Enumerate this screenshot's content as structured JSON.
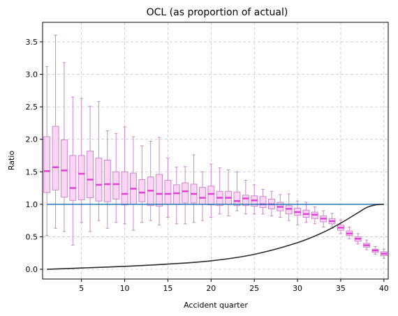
{
  "chart_data": {
    "type": "box",
    "title": "OCL (as proportion of actual)",
    "xlabel": "Accident quarter",
    "ylabel": "Ratio",
    "xlim": [
      0.5,
      40.5
    ],
    "ylim": [
      -0.15,
      3.8
    ],
    "xticks": [
      5,
      10,
      15,
      20,
      25,
      30,
      35,
      40
    ],
    "yticks": [
      0.0,
      0.5,
      1.0,
      1.5,
      2.0,
      2.5,
      3.0,
      3.5
    ],
    "grid": true,
    "colors": {
      "box_fill": "#fcd4f4",
      "box_edge": "#cc88cc",
      "median": "#e040d8",
      "reference_line": "#1f77b4",
      "curve": "#2b2b2b",
      "grid": "#c8c8c8"
    },
    "reference_line": {
      "y": 1.0
    },
    "curve": {
      "x": [
        1,
        5,
        10,
        15,
        20,
        25,
        30,
        33,
        35,
        37,
        38,
        39,
        40
      ],
      "y": [
        0.0,
        0.02,
        0.045,
        0.08,
        0.13,
        0.23,
        0.41,
        0.57,
        0.71,
        0.87,
        0.95,
        0.99,
        1.0
      ]
    },
    "boxes": [
      {
        "x": 1,
        "min": 0.52,
        "q1": 1.18,
        "median": 1.51,
        "q3": 2.04,
        "max": 3.12
      },
      {
        "x": 2,
        "min": 0.63,
        "q1": 1.22,
        "median": 1.57,
        "q3": 2.2,
        "max": 3.6
      },
      {
        "x": 3,
        "min": 0.58,
        "q1": 1.11,
        "median": 1.52,
        "q3": 1.99,
        "max": 3.18
      },
      {
        "x": 4,
        "min": 0.37,
        "q1": 1.06,
        "median": 1.25,
        "q3": 1.75,
        "max": 2.65
      },
      {
        "x": 5,
        "min": 0.72,
        "q1": 1.07,
        "median": 1.47,
        "q3": 1.75,
        "max": 2.63
      },
      {
        "x": 6,
        "min": 0.58,
        "q1": 1.1,
        "median": 1.38,
        "q3": 1.82,
        "max": 2.51
      },
      {
        "x": 7,
        "min": 0.75,
        "q1": 1.05,
        "median": 1.3,
        "q3": 1.71,
        "max": 2.58
      },
      {
        "x": 8,
        "min": 0.63,
        "q1": 1.04,
        "median": 1.31,
        "q3": 1.68,
        "max": 2.13
      },
      {
        "x": 9,
        "min": 0.72,
        "q1": 1.08,
        "median": 1.31,
        "q3": 1.5,
        "max": 2.09
      },
      {
        "x": 10,
        "min": 0.7,
        "q1": 0.99,
        "median": 1.16,
        "q3": 1.5,
        "max": 2.19
      },
      {
        "x": 11,
        "min": 0.6,
        "q1": 1.0,
        "median": 1.24,
        "q3": 1.48,
        "max": 2.04
      },
      {
        "x": 12,
        "min": 0.72,
        "q1": 1.04,
        "median": 1.18,
        "q3": 1.38,
        "max": 1.9
      },
      {
        "x": 13,
        "min": 0.75,
        "q1": 0.98,
        "median": 1.21,
        "q3": 1.42,
        "max": 1.97
      },
      {
        "x": 14,
        "min": 0.68,
        "q1": 0.97,
        "median": 1.16,
        "q3": 1.46,
        "max": 2.03
      },
      {
        "x": 15,
        "min": 0.8,
        "q1": 1.0,
        "median": 1.16,
        "q3": 1.37,
        "max": 1.71
      },
      {
        "x": 16,
        "min": 0.7,
        "q1": 1.0,
        "median": 1.17,
        "q3": 1.3,
        "max": 1.57
      },
      {
        "x": 17,
        "min": 0.7,
        "q1": 1.02,
        "median": 1.2,
        "q3": 1.33,
        "max": 1.58
      },
      {
        "x": 18,
        "min": 0.72,
        "q1": 1.02,
        "median": 1.16,
        "q3": 1.31,
        "max": 1.76
      },
      {
        "x": 19,
        "min": 0.75,
        "q1": 1.0,
        "median": 1.1,
        "q3": 1.26,
        "max": 1.5
      },
      {
        "x": 20,
        "min": 0.8,
        "q1": 0.99,
        "median": 1.16,
        "q3": 1.28,
        "max": 1.62
      },
      {
        "x": 21,
        "min": 0.85,
        "q1": 0.98,
        "median": 1.1,
        "q3": 1.2,
        "max": 1.56
      },
      {
        "x": 22,
        "min": 0.82,
        "q1": 1.0,
        "median": 1.1,
        "q3": 1.2,
        "max": 1.53
      },
      {
        "x": 23,
        "min": 0.9,
        "q1": 0.98,
        "median": 1.05,
        "q3": 1.19,
        "max": 1.5
      },
      {
        "x": 24,
        "min": 0.85,
        "q1": 0.98,
        "median": 1.09,
        "q3": 1.14,
        "max": 1.37
      },
      {
        "x": 25,
        "min": 0.85,
        "q1": 0.97,
        "median": 1.06,
        "q3": 1.13,
        "max": 1.3
      },
      {
        "x": 26,
        "min": 0.85,
        "q1": 0.95,
        "median": 1.0,
        "q3": 1.12,
        "max": 1.23
      },
      {
        "x": 27,
        "min": 0.82,
        "q1": 0.93,
        "median": 1.0,
        "q3": 1.08,
        "max": 1.2
      },
      {
        "x": 28,
        "min": 0.8,
        "q1": 0.9,
        "median": 0.96,
        "q3": 1.03,
        "max": 1.15
      },
      {
        "x": 29,
        "min": 0.75,
        "q1": 0.85,
        "median": 0.93,
        "q3": 0.98,
        "max": 1.16
      },
      {
        "x": 30,
        "min": 0.68,
        "q1": 0.83,
        "median": 0.88,
        "q3": 0.94,
        "max": 1.05
      },
      {
        "x": 31,
        "min": 0.72,
        "q1": 0.8,
        "median": 0.85,
        "q3": 0.91,
        "max": 1.03
      },
      {
        "x": 32,
        "min": 0.7,
        "q1": 0.78,
        "median": 0.84,
        "q3": 0.88,
        "max": 0.96
      },
      {
        "x": 33,
        "min": 0.65,
        "q1": 0.73,
        "median": 0.78,
        "q3": 0.82,
        "max": 0.9
      },
      {
        "x": 34,
        "min": 0.63,
        "q1": 0.7,
        "median": 0.74,
        "q3": 0.78,
        "max": 0.86
      },
      {
        "x": 35,
        "min": 0.55,
        "q1": 0.6,
        "median": 0.64,
        "q3": 0.68,
        "max": 0.76
      },
      {
        "x": 36,
        "min": 0.47,
        "q1": 0.52,
        "median": 0.55,
        "q3": 0.59,
        "max": 0.65
      },
      {
        "x": 37,
        "min": 0.39,
        "q1": 0.43,
        "median": 0.47,
        "q3": 0.5,
        "max": 0.55
      },
      {
        "x": 38,
        "min": 0.3,
        "q1": 0.34,
        "median": 0.37,
        "q3": 0.4,
        "max": 0.45
      },
      {
        "x": 39,
        "min": 0.23,
        "q1": 0.26,
        "median": 0.29,
        "q3": 0.31,
        "max": 0.35
      },
      {
        "x": 40,
        "min": 0.17,
        "q1": 0.21,
        "median": 0.24,
        "q3": 0.27,
        "max": 0.31
      }
    ]
  }
}
